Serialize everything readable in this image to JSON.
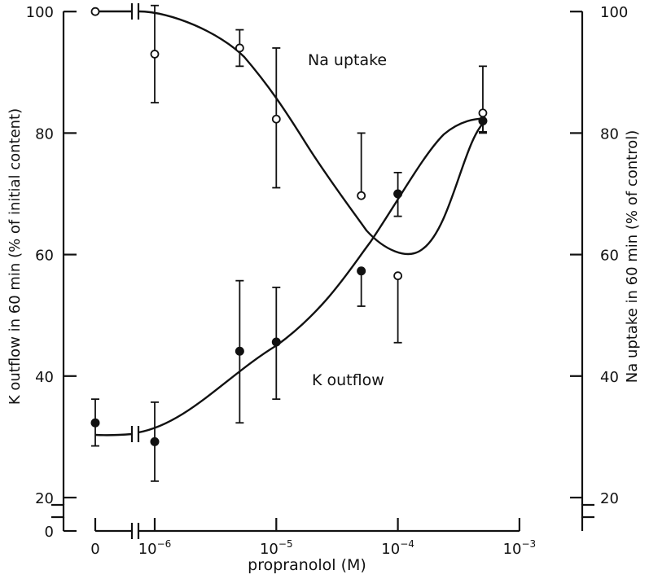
{
  "chart_data": {
    "type": "scatter",
    "xlabel": "propranolol (M)",
    "y_left_label": "K outflow in 60 min (% of initial content)",
    "y_right_label": "Na uptake in 60 min  (% of control)",
    "x_ticks": [
      {
        "label": "0",
        "value": 0
      },
      {
        "label": "10",
        "exp": "−6",
        "value": 1e-06
      },
      {
        "label": "10",
        "exp": "−5",
        "value": 1e-05
      },
      {
        "label": "10",
        "exp": "−4",
        "value": 0.0001
      },
      {
        "label": "10",
        "exp": "−3",
        "value": 0.001
      }
    ],
    "y_left_ticks": [
      "0",
      "20",
      "40",
      "60",
      "80",
      "100"
    ],
    "y_right_ticks": [
      "20",
      "40",
      "60",
      "80",
      "100"
    ],
    "ylim": [
      20,
      100
    ],
    "series": [
      {
        "name": "Na uptake",
        "marker": "open-circle",
        "points": [
          {
            "x": 0,
            "y": 100,
            "err_low": 100,
            "err_high": 100
          },
          {
            "x": 1e-06,
            "y": 93,
            "err_low": 85,
            "err_high": 101
          },
          {
            "x": 5e-06,
            "y": 94,
            "err_low": 91,
            "err_high": 97
          },
          {
            "x": 1e-05,
            "y": 82.3,
            "err_low": 71,
            "err_high": 94
          },
          {
            "x": 5e-05,
            "y": 69.7,
            "err_low": 69.7,
            "err_high": 80
          },
          {
            "x": 0.0001,
            "y": 56.5,
            "err_low": 45.5,
            "err_high": 56.5
          },
          {
            "x": 0.0005,
            "y": 83.3,
            "err_low": 80,
            "err_high": 91
          }
        ]
      },
      {
        "name": "K outflow",
        "marker": "filled-circle",
        "points": [
          {
            "x": 0,
            "y": 32.3,
            "err_low": 28.5,
            "err_high": 36.2
          },
          {
            "x": 1e-06,
            "y": 29.2,
            "err_low": 22.7,
            "err_high": 35.7
          },
          {
            "x": 5e-06,
            "y": 44.1,
            "err_low": 32.3,
            "err_high": 55.7
          },
          {
            "x": 1e-05,
            "y": 45.6,
            "err_low": 36.2,
            "err_high": 54.6
          },
          {
            "x": 5e-05,
            "y": 57.3,
            "err_low": 51.5,
            "err_high": 57.3
          },
          {
            "x": 0.0001,
            "y": 70,
            "err_low": 66.3,
            "err_high": 73.5
          },
          {
            "x": 0.0005,
            "y": 82,
            "err_low": 80.2,
            "err_high": 82
          }
        ]
      }
    ]
  }
}
